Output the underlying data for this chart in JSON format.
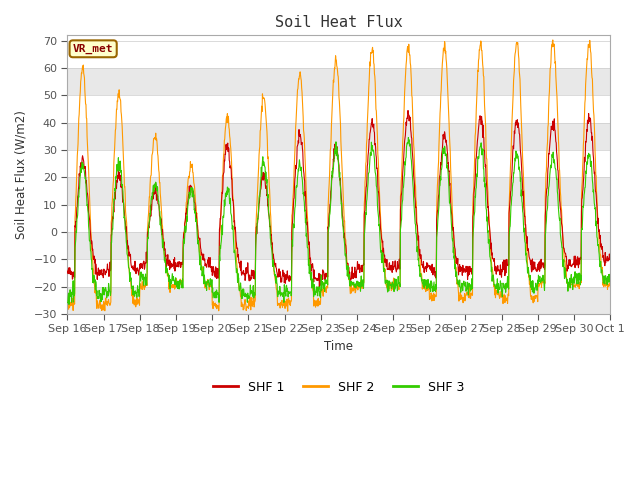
{
  "title": "Soil Heat Flux",
  "ylabel": "Soil Heat Flux (W/m2)",
  "xlabel": "Time",
  "ylim": [
    -30,
    72
  ],
  "yticks": [
    -30,
    -20,
    -10,
    0,
    10,
    20,
    30,
    40,
    50,
    60,
    70
  ],
  "fig_bg_color": "#ffffff",
  "plot_bg_color": "#ffffff",
  "grid_color": "#cccccc",
  "line_colors": [
    "#cc0000",
    "#ff9900",
    "#33cc00"
  ],
  "legend_labels": [
    "SHF 1",
    "SHF 2",
    "SHF 3"
  ],
  "watermark_text": "VR_met",
  "watermark_bg": "#ffffcc",
  "watermark_border": "#996600",
  "n_days": 15,
  "points_per_day": 96,
  "start_day": 16,
  "stripe_color": "#e8e8e8"
}
